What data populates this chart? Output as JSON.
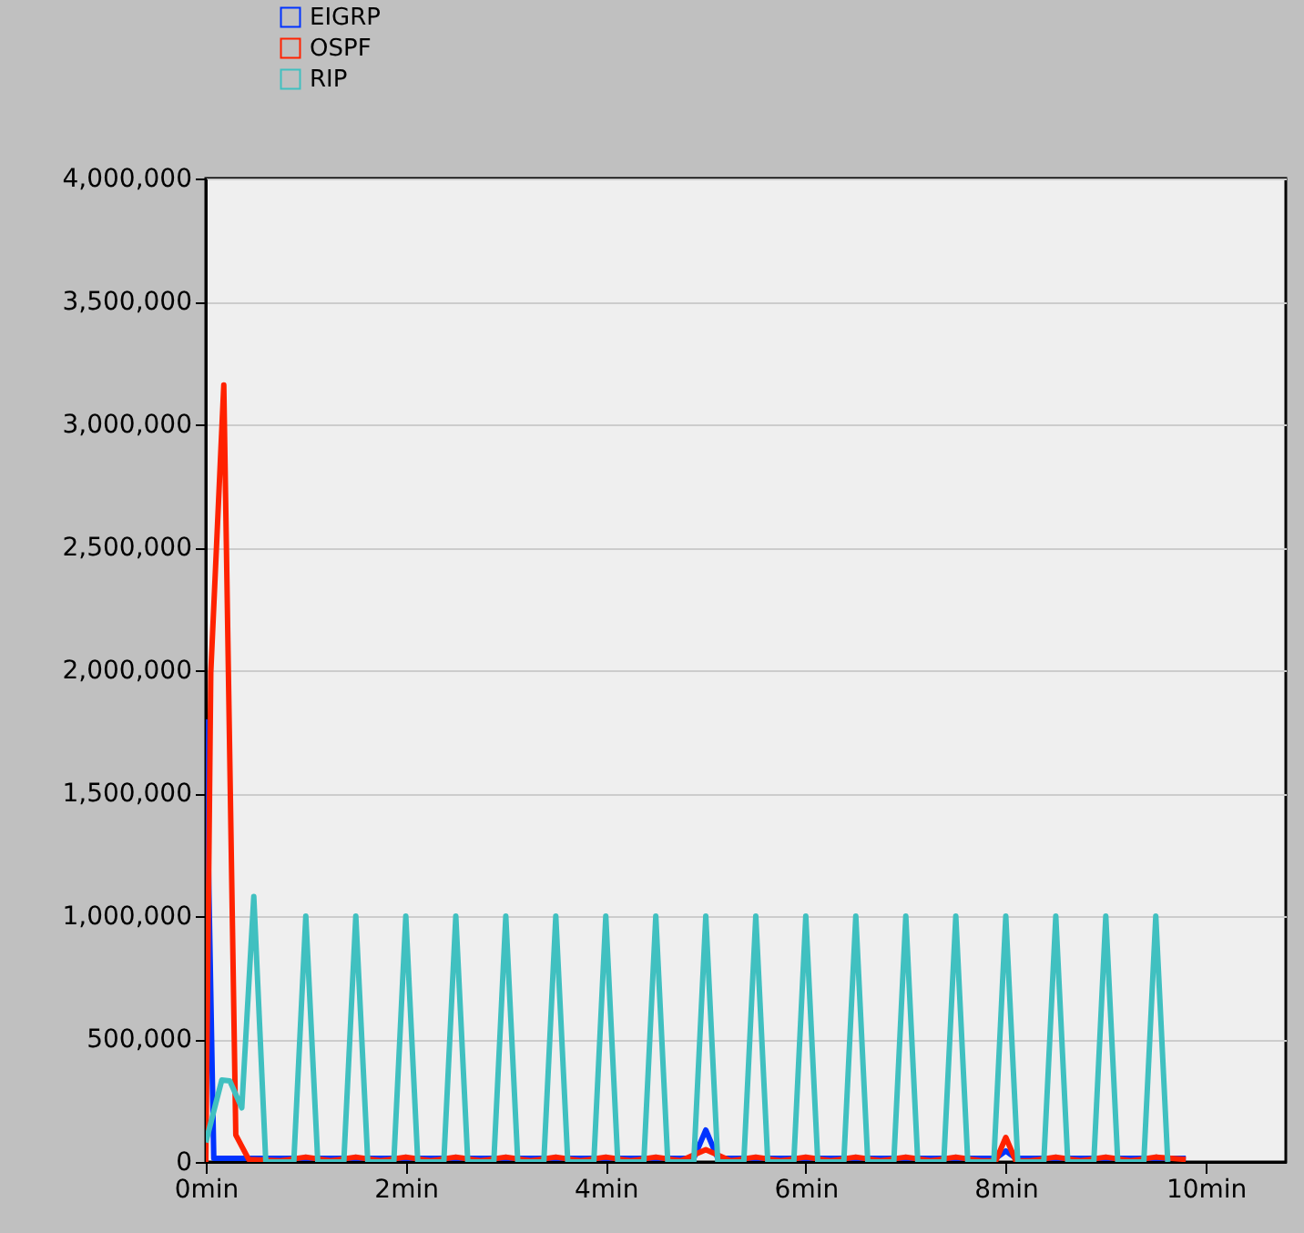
{
  "chart_data": {
    "type": "line",
    "xlim": [
      0,
      10.8
    ],
    "ylim": [
      0,
      4000000
    ],
    "xticks": [
      {
        "value": 0,
        "label": "0min"
      },
      {
        "value": 2,
        "label": "2min"
      },
      {
        "value": 4,
        "label": "4min"
      },
      {
        "value": 6,
        "label": "6min"
      },
      {
        "value": 8,
        "label": "8min"
      },
      {
        "value": 10,
        "label": "10min"
      }
    ],
    "yticks": [
      {
        "value": 0,
        "label": "0"
      },
      {
        "value": 500000,
        "label": "500,000"
      },
      {
        "value": 1000000,
        "label": "1,000,000"
      },
      {
        "value": 1500000,
        "label": "1,500,000"
      },
      {
        "value": 2000000,
        "label": "2,000,000"
      },
      {
        "value": 2500000,
        "label": "2,500,000"
      },
      {
        "value": 3000000,
        "label": "3,000,000"
      },
      {
        "value": 3500000,
        "label": "3,500,000"
      },
      {
        "value": 4000000,
        "label": "4,000,000"
      }
    ],
    "grid": "y",
    "legend": "top left",
    "marker": "none",
    "line_style": "solid",
    "series": [
      {
        "name": "EIGRP",
        "color": "#0033ff",
        "x": [
          0,
          0.08,
          4.88,
          5.0,
          5.12,
          7.9,
          8.0,
          8.1,
          9.8
        ],
        "values": [
          1800000,
          15000,
          15000,
          130000,
          15000,
          15000,
          45000,
          15000,
          15000
        ]
      },
      {
        "name": "OSPF",
        "color": "#ff2200",
        "x": [
          0,
          0.05,
          0.18,
          0.3,
          0.43,
          0.75,
          1,
          1.25,
          1.5,
          1.75,
          2,
          2.25,
          2.5,
          2.75,
          3,
          3.25,
          3.5,
          3.75,
          4,
          4.25,
          4.5,
          4.75,
          5,
          5.25,
          5.5,
          5.75,
          6,
          6.25,
          6.5,
          6.75,
          7,
          7.25,
          7.5,
          7.75,
          7.9,
          8,
          8.1,
          8.25,
          8.5,
          8.75,
          9,
          9.25,
          9.5,
          9.8
        ],
        "values": [
          0,
          1990000,
          3160000,
          110000,
          10000,
          5000,
          20000,
          5000,
          20000,
          5000,
          20000,
          5000,
          20000,
          5000,
          20000,
          5000,
          20000,
          5000,
          20000,
          5000,
          20000,
          5000,
          50000,
          5000,
          20000,
          5000,
          20000,
          5000,
          20000,
          5000,
          20000,
          5000,
          20000,
          5000,
          5000,
          100000,
          5000,
          5000,
          20000,
          5000,
          20000,
          5000,
          20000,
          10000
        ]
      },
      {
        "name": "RIP",
        "color": "#40c0c0",
        "x": [
          0,
          0.16,
          0.24,
          0.36,
          0.48,
          0.6,
          0.88,
          1,
          1.12,
          1.38,
          1.5,
          1.62,
          1.88,
          2,
          2.12,
          2.38,
          2.5,
          2.62,
          2.88,
          3,
          3.12,
          3.38,
          3.5,
          3.62,
          3.88,
          4,
          4.12,
          4.38,
          4.5,
          4.62,
          4.88,
          5,
          5.12,
          5.38,
          5.5,
          5.62,
          5.88,
          6,
          6.12,
          6.38,
          6.5,
          6.62,
          6.88,
          7,
          7.12,
          7.38,
          7.5,
          7.62,
          7.88,
          8,
          8.12,
          8.38,
          8.5,
          8.62,
          8.88,
          9,
          9.12,
          9.38,
          9.5,
          9.62
        ],
        "values": [
          80000,
          333000,
          330000,
          220000,
          1080000,
          0,
          0,
          1000000,
          0,
          0,
          1000000,
          0,
          0,
          1000000,
          0,
          0,
          1000000,
          0,
          0,
          1000000,
          0,
          0,
          1000000,
          0,
          0,
          1000000,
          0,
          0,
          1000000,
          0,
          0,
          1000000,
          0,
          0,
          1000000,
          0,
          0,
          1000000,
          0,
          0,
          1000000,
          0,
          0,
          1000000,
          0,
          0,
          1000000,
          0,
          0,
          1000000,
          0,
          0,
          1000000,
          0,
          0,
          1000000,
          0,
          0,
          1000000,
          0
        ]
      }
    ]
  }
}
